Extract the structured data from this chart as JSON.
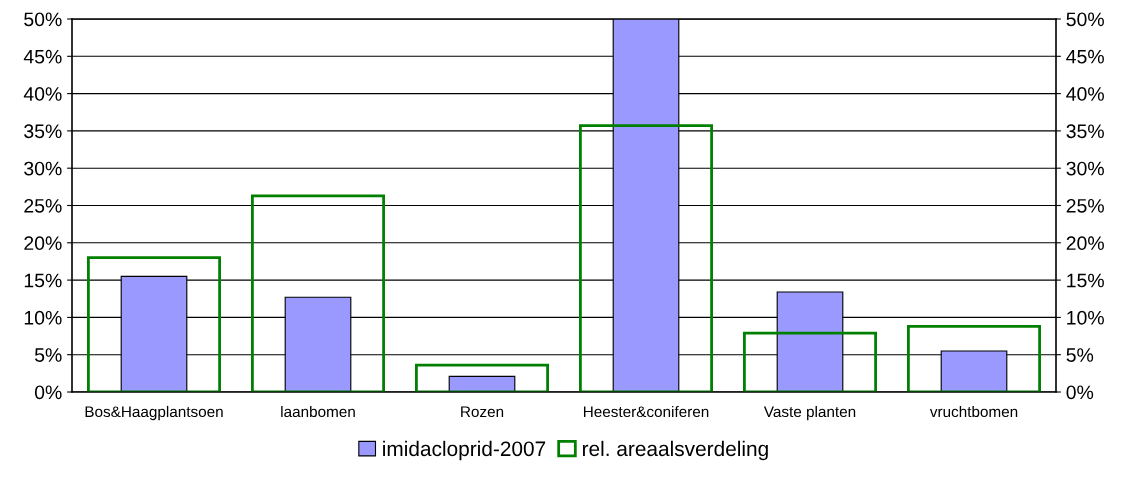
{
  "chart_data": {
    "type": "bar",
    "categories": [
      "Bos&Haagplantsoen",
      "laanbomen",
      "Rozen",
      "Heester&coniferen",
      "Vaste planten",
      "vruchtbomen"
    ],
    "series": [
      {
        "name": "imidacloprid-2007",
        "color": "#9999ff",
        "values": [
          15.5,
          12.7,
          2.1,
          50,
          13.4,
          5.5
        ]
      },
      {
        "name": "rel. areaalsverdeling",
        "color": "#008000",
        "axis": "y2",
        "values": [
          18.0,
          26.3,
          3.6,
          35.7,
          7.9,
          8.8
        ]
      }
    ],
    "ylim": [
      0,
      50
    ],
    "yticks": [
      {
        "value": 0,
        "label": "0%"
      },
      {
        "value": 5,
        "label": "5%"
      },
      {
        "value": 10,
        "label": "10%"
      },
      {
        "value": 15,
        "label": "15%"
      },
      {
        "value": 20,
        "label": "20%"
      },
      {
        "value": 25,
        "label": "25%"
      },
      {
        "value": 30,
        "label": "30%"
      },
      {
        "value": 35,
        "label": "35%"
      },
      {
        "value": 40,
        "label": "40%"
      },
      {
        "value": 45,
        "label": "45%"
      },
      {
        "value": 50,
        "label": "50%"
      }
    ],
    "y2lim": [
      0,
      50
    ],
    "y2ticks": [
      {
        "value": 0,
        "label": "0%"
      },
      {
        "value": 5,
        "label": "5%"
      },
      {
        "value": 10,
        "label": "10%"
      },
      {
        "value": 15,
        "label": "15%"
      },
      {
        "value": 20,
        "label": "20%"
      },
      {
        "value": 25,
        "label": "25%"
      },
      {
        "value": 30,
        "label": "30%"
      },
      {
        "value": 35,
        "label": "35%"
      },
      {
        "value": 40,
        "label": "40%"
      },
      {
        "value": 45,
        "label": "45%"
      },
      {
        "value": 50,
        "label": "50%"
      }
    ],
    "grid": "y",
    "legend": "bottom"
  }
}
